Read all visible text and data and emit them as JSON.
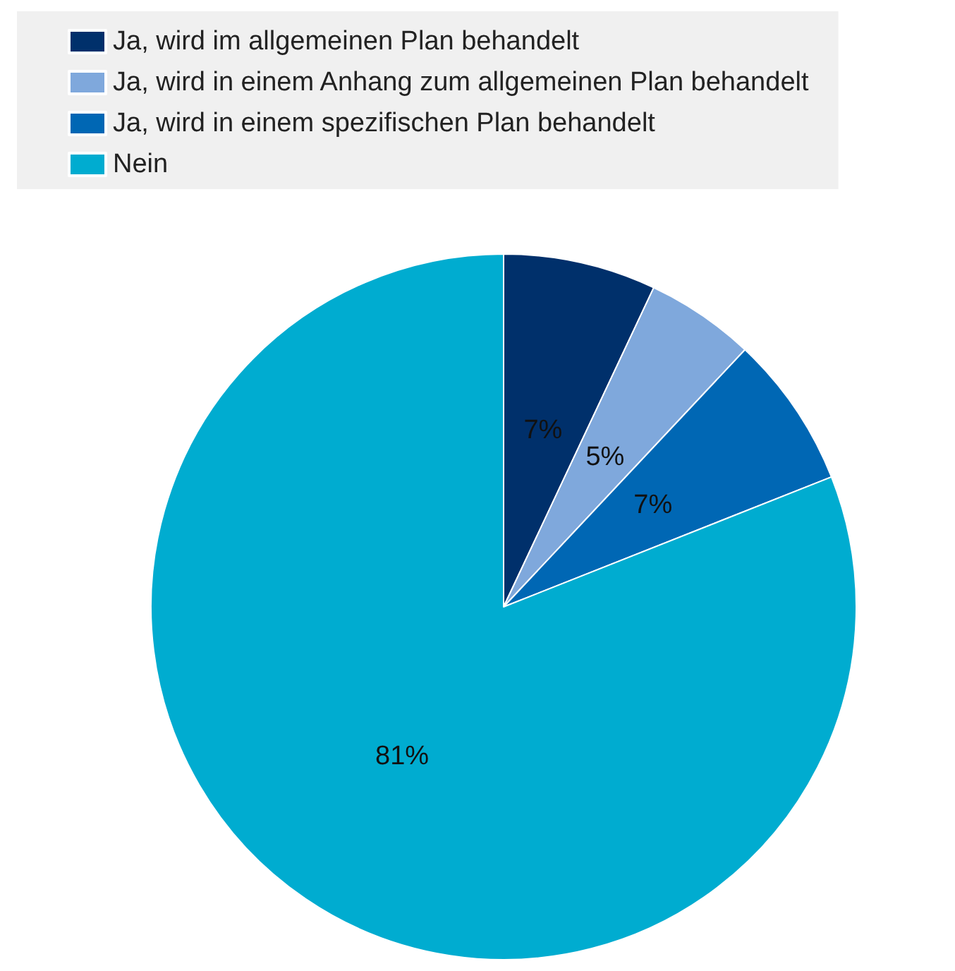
{
  "chart_data": {
    "type": "pie",
    "categories": [
      "Ja, wird im allgemeinen Plan behandelt",
      "Ja, wird in einem Anhang zum allgemeinen Plan behandelt",
      "Ja, wird in einem spezifischen Plan behandelt",
      "Nein"
    ],
    "values": [
      7,
      5,
      7,
      81
    ],
    "colors": [
      "#00306b",
      "#7fa8dc",
      "#0067b4",
      "#00acd0"
    ],
    "value_labels": [
      "7%",
      "5%",
      "7%",
      "81%"
    ],
    "legend": "top left"
  }
}
